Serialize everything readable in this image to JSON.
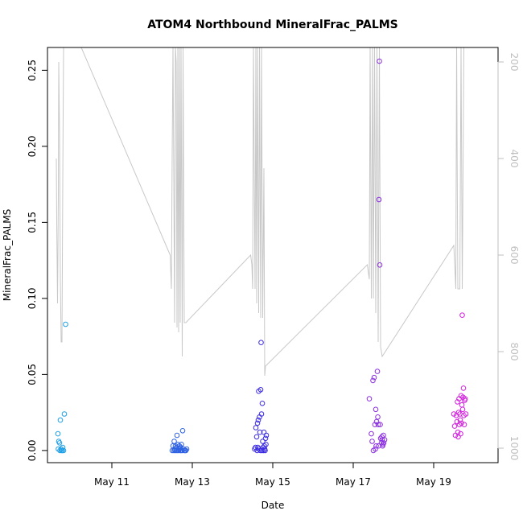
{
  "chart_data": {
    "type": "scatter",
    "title": "ATOM4 Northbound MineralFrac_PALMS",
    "xlabel": "Date",
    "ylabel": "MineralFrac_PALMS",
    "x_unit": "days in May",
    "xlim": [
      9.4,
      20.6
    ],
    "ylim": [
      -0.008,
      0.265
    ],
    "x_ticks": [
      {
        "value": 11,
        "label": "May 11"
      },
      {
        "value": 13,
        "label": "May 13"
      },
      {
        "value": 15,
        "label": "May 15"
      },
      {
        "value": 17,
        "label": "May 17"
      },
      {
        "value": 19,
        "label": "May 19"
      }
    ],
    "y_ticks": [
      0.0,
      0.05,
      0.1,
      0.15,
      0.2,
      0.25
    ],
    "y_tick_labels": [
      "0.00",
      "0.05",
      "0.10",
      "0.15",
      "0.20",
      "0.25"
    ],
    "right_axis": {
      "ticks": [
        200,
        400,
        600,
        800,
        1000
      ],
      "ylim": [
        1030,
        170
      ],
      "color": "#bfbfbf"
    },
    "series": [
      {
        "color": "#1E9FE6",
        "points": [
          [
            9.66,
            0.011
          ],
          [
            9.67,
            0.001
          ],
          [
            9.68,
            0.006
          ],
          [
            9.7,
            0.005
          ],
          [
            9.71,
            0.0
          ],
          [
            9.72,
            0.02
          ],
          [
            9.74,
            0.001
          ],
          [
            9.75,
            0.0
          ],
          [
            9.77,
            0.0
          ],
          [
            9.78,
            0.002
          ],
          [
            9.8,
            0.0
          ],
          [
            9.82,
            0.024
          ],
          [
            9.85,
            0.083
          ]
        ]
      },
      {
        "color": "#2F62E3",
        "points": [
          [
            12.5,
            0.0
          ],
          [
            12.52,
            0.003
          ],
          [
            12.54,
            0.0
          ],
          [
            12.55,
            0.006
          ],
          [
            12.56,
            0.001
          ],
          [
            12.57,
            0.0
          ],
          [
            12.58,
            0.003
          ],
          [
            12.6,
            0.0
          ],
          [
            12.61,
            0.002
          ],
          [
            12.62,
            0.01
          ],
          [
            12.63,
            0.0
          ],
          [
            12.64,
            0.004
          ],
          [
            12.66,
            0.0
          ],
          [
            12.67,
            0.001
          ],
          [
            12.68,
            0.003
          ],
          [
            12.7,
            0.0
          ],
          [
            12.71,
            0.002
          ],
          [
            12.72,
            0.0
          ],
          [
            12.73,
            0.004
          ],
          [
            12.75,
            0.0
          ],
          [
            12.76,
            0.013
          ],
          [
            12.78,
            0.001
          ],
          [
            12.8,
            0.0
          ],
          [
            12.82,
            0.0
          ],
          [
            12.84,
            0.0
          ],
          [
            12.86,
            0.001
          ]
        ]
      },
      {
        "color": "#3B2BE3",
        "points": [
          [
            14.55,
            0.001
          ],
          [
            14.57,
            0.002
          ],
          [
            14.58,
            0.015
          ],
          [
            14.6,
            0.009
          ],
          [
            14.61,
            0.0
          ],
          [
            14.62,
            0.018
          ],
          [
            14.63,
            0.002
          ],
          [
            14.64,
            0.02
          ],
          [
            14.65,
            0.039
          ],
          [
            14.66,
            0.001
          ],
          [
            14.67,
            0.022
          ],
          [
            14.68,
            0.012
          ],
          [
            14.69,
            0.0
          ],
          [
            14.7,
            0.04
          ],
          [
            14.71,
            0.071
          ],
          [
            14.72,
            0.024
          ],
          [
            14.73,
            0.0
          ],
          [
            14.74,
            0.031
          ],
          [
            14.75,
            0.006
          ],
          [
            14.76,
            0.002
          ],
          [
            14.77,
            0.0
          ],
          [
            14.78,
            0.012
          ],
          [
            14.79,
            0.003
          ],
          [
            14.8,
            0.001
          ],
          [
            14.81,
            0.0
          ],
          [
            14.82,
            0.008
          ],
          [
            14.83,
            0.004
          ],
          [
            14.84,
            0.01
          ]
        ]
      },
      {
        "color": "#8B2FE0",
        "points": [
          [
            17.4,
            0.034
          ],
          [
            17.45,
            0.011
          ],
          [
            17.47,
            0.006
          ],
          [
            17.49,
            0.046
          ],
          [
            17.5,
            0.0
          ],
          [
            17.52,
            0.048
          ],
          [
            17.54,
            0.017
          ],
          [
            17.55,
            0.001
          ],
          [
            17.56,
            0.027
          ],
          [
            17.57,
            0.003
          ],
          [
            17.58,
            0.019
          ],
          [
            17.6,
            0.052
          ],
          [
            17.61,
            0.022
          ],
          [
            17.62,
            0.017
          ],
          [
            17.63,
            0.003
          ],
          [
            17.64,
            0.165
          ],
          [
            17.65,
            0.256
          ],
          [
            17.66,
            0.122
          ],
          [
            17.67,
            0.017
          ],
          [
            17.68,
            0.008
          ],
          [
            17.7,
            0.005
          ],
          [
            17.71,
            0.009
          ],
          [
            17.72,
            0.007
          ],
          [
            17.73,
            0.003
          ],
          [
            17.74,
            0.004
          ],
          [
            17.75,
            0.01
          ],
          [
            17.76,
            0.005
          ],
          [
            17.78,
            0.007
          ]
        ]
      },
      {
        "color": "#D21FDD",
        "points": [
          [
            19.5,
            0.024
          ],
          [
            19.52,
            0.016
          ],
          [
            19.54,
            0.01
          ],
          [
            19.56,
            0.023
          ],
          [
            19.58,
            0.019
          ],
          [
            19.59,
            0.032
          ],
          [
            19.6,
            0.012
          ],
          [
            19.61,
            0.009
          ],
          [
            19.62,
            0.025
          ],
          [
            19.63,
            0.034
          ],
          [
            19.64,
            0.017
          ],
          [
            19.65,
            0.024
          ],
          [
            19.66,
            0.02
          ],
          [
            19.67,
            0.011
          ],
          [
            19.68,
            0.036
          ],
          [
            19.69,
            0.018
          ],
          [
            19.7,
            0.03
          ],
          [
            19.71,
            0.089
          ],
          [
            19.72,
            0.027
          ],
          [
            19.73,
            0.035
          ],
          [
            19.74,
            0.041
          ],
          [
            19.75,
            0.023
          ],
          [
            19.76,
            0.017
          ],
          [
            19.77,
            0.033
          ],
          [
            19.78,
            0.034
          ],
          [
            19.8,
            0.024
          ]
        ]
      }
    ],
    "altitude_line": {
      "color": "#c8c8c8",
      "axis": "right",
      "segments": [
        [
          [
            9.62,
            400
          ],
          [
            9.63,
            530
          ],
          [
            9.65,
            700
          ],
          [
            9.67,
            480
          ],
          [
            9.68,
            200
          ],
          [
            9.7,
            350
          ],
          [
            9.72,
            650
          ],
          [
            9.74,
            780
          ],
          [
            9.76,
            780
          ],
          [
            9.78,
            450
          ],
          [
            9.8,
            170
          ],
          [
            9.83,
            170
          ],
          [
            9.86,
            170
          ],
          [
            9.88,
            100
          ],
          [
            12.45,
            600
          ],
          [
            12.48,
            670
          ],
          [
            12.5,
            390
          ],
          [
            12.52,
            170
          ],
          [
            12.54,
            450
          ],
          [
            12.56,
            740
          ],
          [
            12.58,
            170
          ],
          [
            12.6,
            200
          ],
          [
            12.62,
            750
          ],
          [
            12.64,
            170
          ],
          [
            12.66,
            760
          ],
          [
            12.68,
            170
          ],
          [
            12.7,
            740
          ],
          [
            12.72,
            170
          ],
          [
            12.75,
            810
          ],
          [
            12.77,
            170
          ],
          [
            12.8,
            740
          ],
          [
            12.82,
            740
          ],
          [
            12.84,
            740
          ],
          [
            14.45,
            600
          ],
          [
            14.48,
            620
          ],
          [
            14.5,
            670
          ],
          [
            14.52,
            170
          ],
          [
            14.54,
            430
          ],
          [
            14.56,
            670
          ],
          [
            14.58,
            170
          ],
          [
            14.6,
            700
          ],
          [
            14.62,
            170
          ],
          [
            14.65,
            720
          ],
          [
            14.67,
            170
          ],
          [
            14.7,
            730
          ],
          [
            14.72,
            170
          ],
          [
            14.75,
            730
          ],
          [
            14.78,
            420
          ],
          [
            14.8,
            850
          ],
          [
            14.82,
            830
          ],
          [
            17.35,
            620
          ],
          [
            17.4,
            650
          ],
          [
            17.42,
            170
          ],
          [
            17.45,
            690
          ],
          [
            17.48,
            170
          ],
          [
            17.5,
            690
          ],
          [
            17.53,
            170
          ],
          [
            17.56,
            720
          ],
          [
            17.59,
            170
          ],
          [
            17.62,
            780
          ],
          [
            17.65,
            170
          ],
          [
            17.68,
            790
          ],
          [
            17.7,
            800
          ],
          [
            17.72,
            810
          ],
          [
            19.5,
            580
          ],
          [
            19.55,
            670
          ],
          [
            19.57,
            170
          ],
          [
            19.6,
            670
          ],
          [
            19.65,
            670
          ],
          [
            19.68,
            170
          ],
          [
            19.71,
            670
          ],
          [
            19.75,
            170
          ],
          [
            19.8,
            170
          ]
        ]
      ]
    }
  }
}
